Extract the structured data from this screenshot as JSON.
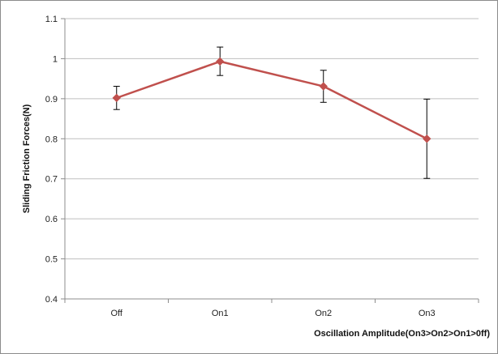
{
  "chart_data": {
    "type": "line",
    "title": "",
    "xlabel": "Oscillation Amplitude(On3>On2>On1>0ff)",
    "ylabel": "Sliding Friction Forces(N)",
    "categories": [
      "Off",
      "On1",
      "On2",
      "On3"
    ],
    "series": [
      {
        "values": [
          0.902,
          0.993,
          0.931,
          0.8
        ],
        "error_low": [
          0.873,
          0.958,
          0.891,
          0.701
        ],
        "error_high": [
          0.931,
          1.029,
          0.971,
          0.899
        ],
        "color": "#c0504d",
        "marker": "diamond"
      }
    ],
    "ylim": [
      0.4,
      1.1
    ],
    "yticks": [
      "0.4",
      "0.5",
      "0.6",
      "0.7",
      "0.8",
      "0.9",
      "1",
      "1.1"
    ],
    "grid": true,
    "legend": "none"
  },
  "colors": {
    "gridline": "#bfbfbf",
    "axis": "#8c8c8c",
    "errorbar": "#000000"
  }
}
